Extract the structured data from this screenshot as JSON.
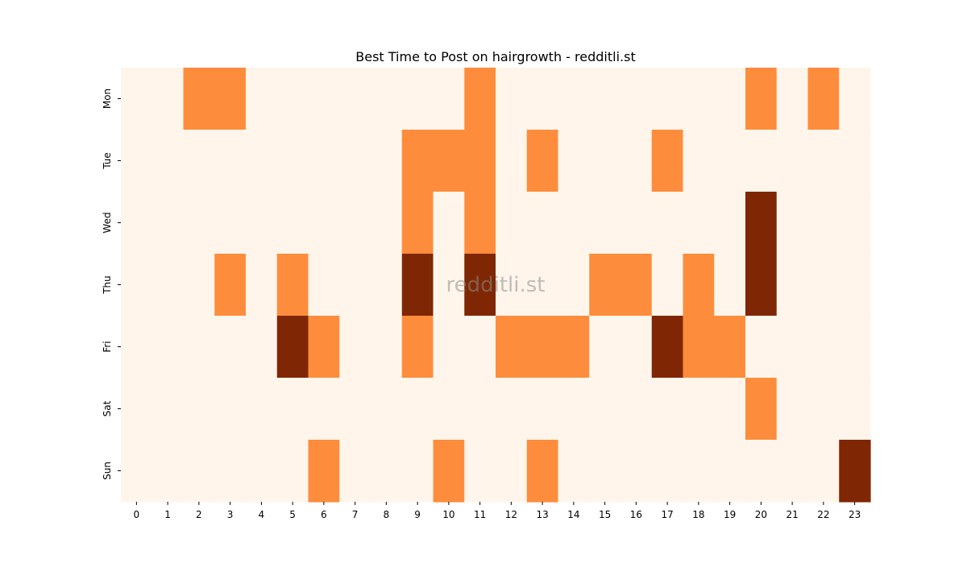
{
  "chart_data": {
    "type": "heatmap",
    "title": "Best Time to Post on hairgrowth - redditli.st",
    "xlabel": "",
    "ylabel": "",
    "x": [
      "0",
      "1",
      "2",
      "3",
      "4",
      "5",
      "6",
      "7",
      "8",
      "9",
      "10",
      "11",
      "12",
      "13",
      "14",
      "15",
      "16",
      "17",
      "18",
      "19",
      "20",
      "21",
      "22",
      "23"
    ],
    "y": [
      "Mon",
      "Tue",
      "Wed",
      "Thu",
      "Fri",
      "Sat",
      "Sun"
    ],
    "values": [
      [
        0,
        0,
        1,
        1,
        0,
        0,
        0,
        0,
        0,
        0,
        0,
        1,
        0,
        0,
        0,
        0,
        0,
        0,
        0,
        0,
        1,
        0,
        1,
        0
      ],
      [
        0,
        0,
        0,
        0,
        0,
        0,
        0,
        0,
        0,
        1,
        1,
        1,
        0,
        1,
        0,
        0,
        0,
        1,
        0,
        0,
        0,
        0,
        0,
        0
      ],
      [
        0,
        0,
        0,
        0,
        0,
        0,
        0,
        0,
        0,
        1,
        0,
        1,
        0,
        0,
        0,
        0,
        0,
        0,
        0,
        0,
        2,
        0,
        0,
        0
      ],
      [
        0,
        0,
        0,
        1,
        0,
        1,
        0,
        0,
        0,
        2,
        0,
        2,
        0,
        0,
        0,
        1,
        1,
        0,
        1,
        0,
        2,
        0,
        0,
        0
      ],
      [
        0,
        0,
        0,
        0,
        0,
        2,
        1,
        0,
        0,
        1,
        0,
        0,
        1,
        1,
        1,
        0,
        0,
        2,
        1,
        1,
        0,
        0,
        0,
        0
      ],
      [
        0,
        0,
        0,
        0,
        0,
        0,
        0,
        0,
        0,
        0,
        0,
        0,
        0,
        0,
        0,
        0,
        0,
        0,
        0,
        0,
        1,
        0,
        0,
        0
      ],
      [
        0,
        0,
        0,
        0,
        0,
        0,
        1,
        0,
        0,
        0,
        1,
        0,
        0,
        1,
        0,
        0,
        0,
        0,
        0,
        0,
        0,
        0,
        0,
        2
      ]
    ],
    "colors": [
      "#fff5eb",
      "#fd8d3c",
      "#7f2704"
    ],
    "watermark": "redditli.st"
  }
}
